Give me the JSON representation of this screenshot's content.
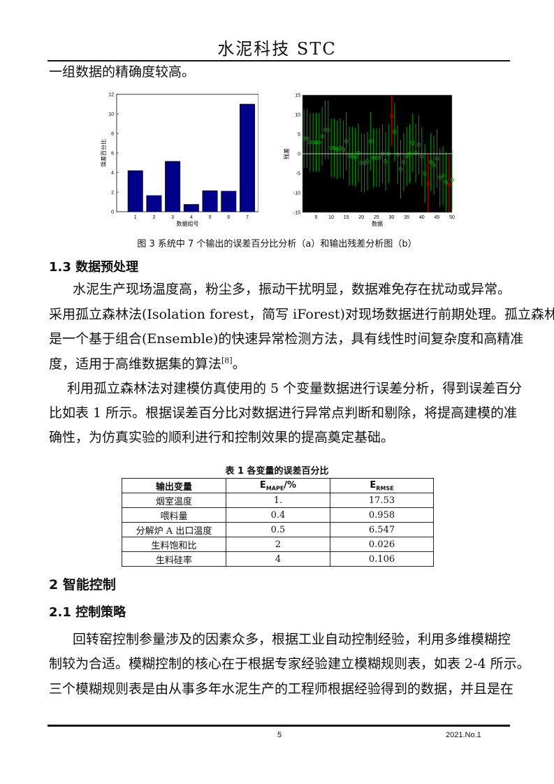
{
  "header": {
    "title": "水泥科技 STC"
  },
  "intro_line": "一组数据的精确度较高。",
  "figure3": {
    "caption": "图 3 系统中 7 个输出的误差百分比分析（a）和输出残差分析图（b）",
    "colors": {
      "bar": "#00008b",
      "background_b": "#000000",
      "interval": "#00a000",
      "outlier": "#b00000",
      "zero_line": "#ffffff"
    }
  },
  "chart_data": [
    {
      "type": "bar",
      "xlabel": "数据组号",
      "ylabel": "误差百分比",
      "categories": [
        "1",
        "2",
        "3",
        "4",
        "5",
        "6",
        "7"
      ],
      "values": [
        4.2,
        1.65,
        5.15,
        0.75,
        2.15,
        2.1,
        11
      ],
      "ylim": [
        0,
        12
      ],
      "yticks": [
        "0",
        "2",
        "4",
        "6",
        "8",
        "10",
        "12"
      ],
      "grid": false
    },
    {
      "type": "scatter",
      "xlabel": "数据",
      "ylabel": "残差",
      "xlim": [
        0.5,
        50
      ],
      "ylim": [
        -15,
        15
      ],
      "xticks": [
        "5",
        "10",
        "15",
        "20",
        "25",
        "30",
        "35",
        "40",
        "45",
        "50"
      ],
      "yticks": [
        "-15",
        "-10",
        "-5",
        "0",
        "5",
        "10",
        "15"
      ],
      "x": [
        1,
        2,
        3,
        4,
        5,
        6,
        7,
        8,
        9,
        10,
        11,
        12,
        13,
        14,
        15,
        16,
        17,
        18,
        19,
        20,
        21,
        22,
        23,
        24,
        25,
        26,
        27,
        28,
        29,
        30,
        31,
        32,
        33,
        34,
        35,
        36,
        37,
        38,
        39,
        40,
        41,
        42,
        43,
        44,
        45,
        46,
        47,
        48,
        49,
        50
      ],
      "residuals": [
        3.9,
        3.9,
        2.9,
        2.9,
        2.9,
        2.9,
        4.5,
        6.1,
        6.1,
        1.5,
        1.5,
        1.0,
        1.5,
        1.0,
        3.2,
        -0.6,
        -0.6,
        -0.9,
        0.2,
        -2.3,
        -2.4,
        -1.9,
        3.2,
        -1.0,
        -1.0,
        -1.0,
        0,
        -1.9,
        0,
        9.6,
        5.6,
        -0.2,
        -3.9,
        -2.1,
        -0.7,
        0,
        2.8,
        0.2,
        2.3,
        -0.7,
        -5.1,
        -7.6,
        -2.1,
        -2.9,
        -1.2,
        -6.1,
        -5.6,
        -7.2,
        -7.8,
        -6.7
      ],
      "interval_halfwidth": 7.5,
      "outliers": [
        30,
        42,
        49
      ],
      "grid": false
    }
  ],
  "section_1_3": {
    "heading": "1.3 数据预处理",
    "p1": [
      "水泥生产现场温度高，粉尘多，振动干扰明显，数据难免存在扰动或异常。",
      "采用孤立森林法(Isolation forest，简写 iForest)对现场数据进行前期处理。孤立森林",
      "是一个基于组合(Ensemble)的快速异常检测方法，具有线性时间复杂度和高精准",
      "度，适用于高维数据集的算法"
    ],
    "p1_ref": "[8]",
    "p1_end": "。",
    "p2": [
      "利用孤立森林法对建模仿真使用的 5 个变量数据进行误差分析，得到误差百分",
      "比如表 1 所示。根据误差百分比对数据进行异常点判断和剔除，将提高建模的准",
      "确性，为仿真实验的顺利进行和控制效果的提高奠定基础。"
    ]
  },
  "table1": {
    "title": "表 1 各变量的误差百分比",
    "headers": [
      "输出变量",
      "E",
      "MAPE",
      "/%",
      "E",
      "RMSE"
    ],
    "rows": [
      [
        "烟室温度",
        "1.",
        "17.53"
      ],
      [
        "喂料量",
        "0.4",
        "0.958"
      ],
      [
        "分解炉 A 出口温度",
        "0.5",
        "6.547"
      ],
      [
        "生料饱和比",
        "2",
        "0.026"
      ],
      [
        "生料硅率",
        "4",
        "0.106"
      ]
    ]
  },
  "section_2": {
    "heading": "2 智能控制"
  },
  "section_2_1": {
    "heading": "2.1 控制策略",
    "p": [
      "回转窑控制参量涉及的因素众多，根据工业自动控制经验，利用多维模糊控",
      "制较为合适。模糊控制的核心在于根据专家经验建立模糊规则表，如表 2-4 所示。",
      "三个模糊规则表是由从事多年水泥生产的工程师根据经验得到的数据，并且是在"
    ]
  },
  "footer": {
    "page": "5",
    "issue": "2021.No.1"
  }
}
